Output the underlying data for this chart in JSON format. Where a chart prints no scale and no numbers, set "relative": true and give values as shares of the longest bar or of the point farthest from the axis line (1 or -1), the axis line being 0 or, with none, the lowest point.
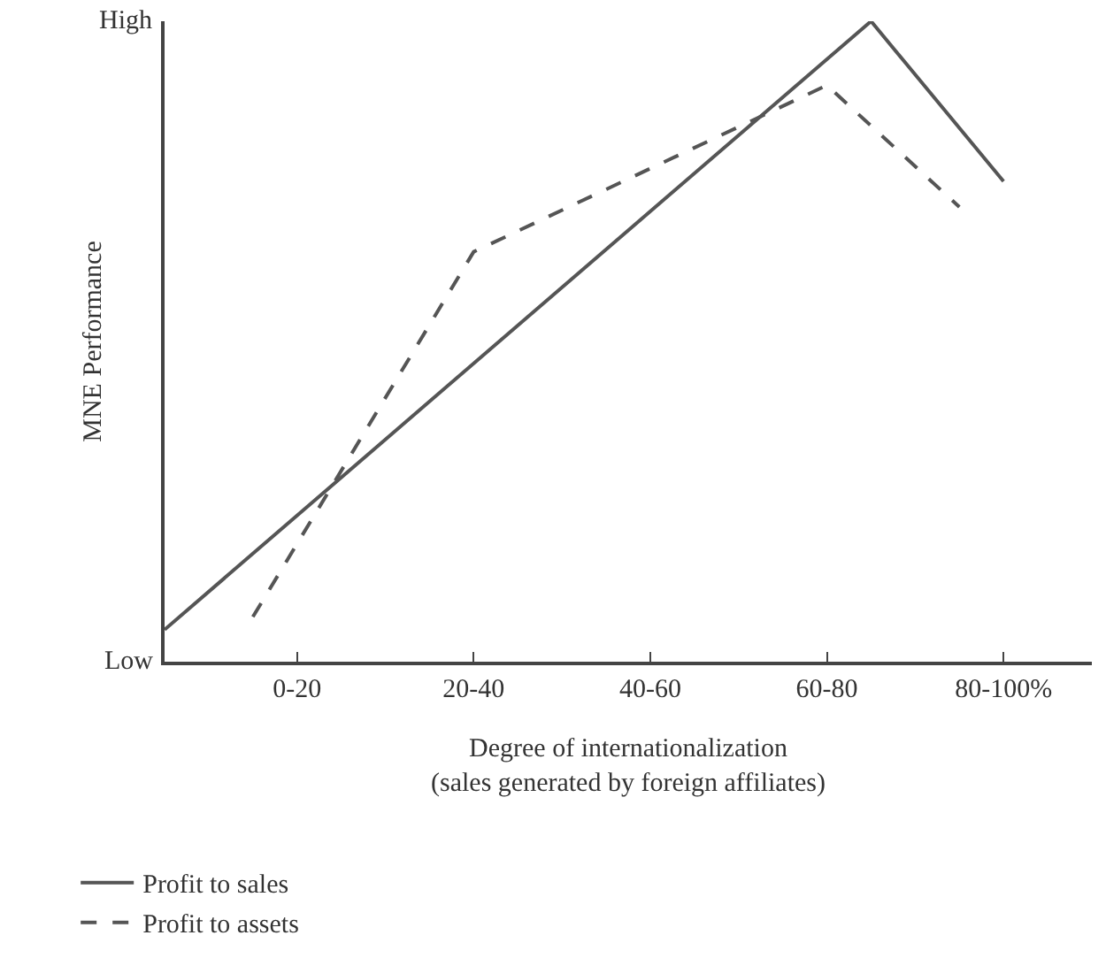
{
  "chart_data": {
    "type": "line",
    "relative": true,
    "xlabel": "Degree of internationalization\n(sales generated by foreign affiliates)",
    "ylabel": "MNE Performance",
    "annotations": [
      "Low",
      "High"
    ],
    "categories": [
      null,
      null,
      null,
      "0-20",
      null,
      null,
      null,
      "20-40",
      null,
      null,
      null,
      "40-60",
      null,
      null,
      null,
      "60-80",
      null,
      null,
      null,
      "80-100%",
      null,
      null
    ],
    "series": [
      {
        "name": "Profit to sales",
        "color": "#555555",
        "line_style": "solid",
        "values": [
          0.05,
          null,
          null,
          null,
          null,
          null,
          null,
          null,
          null,
          null,
          null,
          null,
          null,
          null,
          null,
          null,
          1.0,
          null,
          null,
          0.75,
          null,
          null
        ]
      },
      {
        "name": "Profit to assets",
        "color": "#555555",
        "line_style": "dashed",
        "values": [
          null,
          null,
          0.07,
          null,
          null,
          null,
          null,
          0.64,
          null,
          null,
          null,
          null,
          null,
          null,
          null,
          0.9,
          null,
          null,
          0.71,
          null,
          null,
          null
        ]
      }
    ],
    "grid": false,
    "legend": "bottom left",
    "marker": "none"
  }
}
